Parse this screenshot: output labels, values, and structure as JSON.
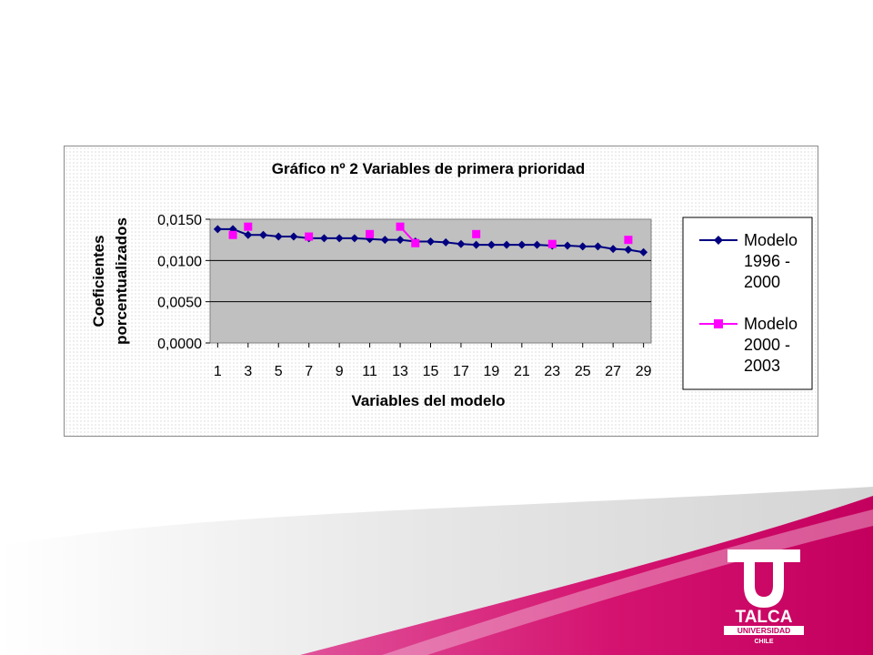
{
  "slide": {
    "colors": {
      "magenta": "#d10a6e",
      "grey": "#dcdcdc"
    }
  },
  "chart_data": {
    "type": "line",
    "title": "Gráfico nº 2 Variables de primera prioridad",
    "xlabel": "Variables del modelo",
    "ylabel": [
      "Coeficientes",
      "porcentualizados"
    ],
    "ylim": [
      0,
      0.015
    ],
    "yticks": [
      "0,0000",
      "0,0050",
      "0,0100",
      "0,0150"
    ],
    "yticks_values": [
      0,
      0.005,
      0.01,
      0.015
    ],
    "xticks": [
      "1",
      "3",
      "5",
      "7",
      "9",
      "11",
      "13",
      "15",
      "17",
      "19",
      "21",
      "23",
      "25",
      "27",
      "29"
    ],
    "xticks_values": [
      1,
      3,
      5,
      7,
      9,
      11,
      13,
      15,
      17,
      19,
      21,
      23,
      25,
      27,
      29
    ],
    "xlim": [
      0.5,
      29.5
    ],
    "grid": true,
    "legend_position": "right",
    "series": [
      {
        "name": [
          "Modelo",
          "1996 -",
          "2000"
        ],
        "color": "#000080",
        "marker": "diamond",
        "line": true,
        "x": [
          1,
          2,
          3,
          4,
          5,
          6,
          7,
          8,
          9,
          10,
          11,
          12,
          13,
          14,
          15,
          16,
          17,
          18,
          19,
          20,
          21,
          22,
          23,
          24,
          25,
          26,
          27,
          28,
          29
        ],
        "y": [
          0.0138,
          0.0138,
          0.0131,
          0.0131,
          0.0129,
          0.0129,
          0.0127,
          0.0127,
          0.0127,
          0.0127,
          0.0126,
          0.0125,
          0.0125,
          0.0123,
          0.0123,
          0.0122,
          0.012,
          0.0119,
          0.0119,
          0.0119,
          0.0119,
          0.0119,
          0.0118,
          0.0118,
          0.0117,
          0.0117,
          0.0114,
          0.0113,
          0.011
        ]
      },
      {
        "name": [
          "Modelo",
          "2000 -",
          "2003"
        ],
        "color": "#ff00ff",
        "marker": "square",
        "line": false,
        "x": [
          2,
          3,
          7,
          11,
          13,
          14,
          18,
          23,
          28
        ],
        "y": [
          0.0131,
          0.0141,
          0.0129,
          0.0132,
          0.0141,
          0.0121,
          0.0132,
          0.012,
          0.0125
        ],
        "connector_segment": [
          13,
          14
        ]
      }
    ]
  }
}
